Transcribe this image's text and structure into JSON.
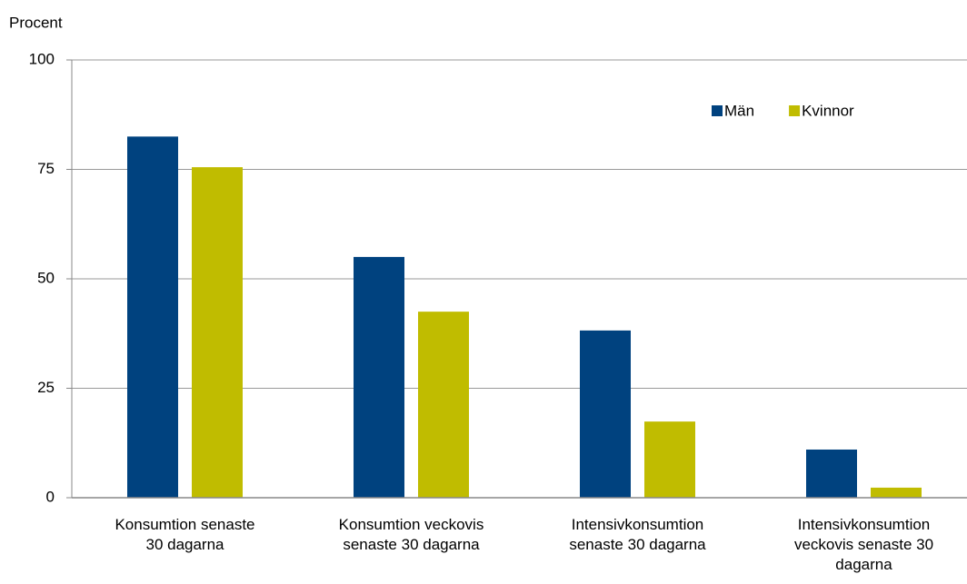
{
  "chart_data": {
    "type": "bar",
    "y_label": "Procent",
    "categories": [
      "Konsumtion senaste\n30 dagarna",
      "Konsumtion veckovis\nsenaste 30 dagarna",
      "Intensivkonsumtion\nsenaste 30 dagarna",
      "Intensivkonsumtion\nveckovis senaste 30\ndagarna"
    ],
    "series": [
      {
        "name": "Män",
        "color": "#00427f",
        "values": [
          82.5,
          55,
          38.2,
          11
        ]
      },
      {
        "name": "Kvinnor",
        "color": "#c0bc00",
        "values": [
          75.5,
          42.5,
          17.4,
          2.3
        ]
      }
    ],
    "ylim": [
      0,
      100
    ],
    "yticks": [
      0,
      25,
      50,
      75,
      100
    ],
    "grid": true,
    "legend": "upper right"
  }
}
